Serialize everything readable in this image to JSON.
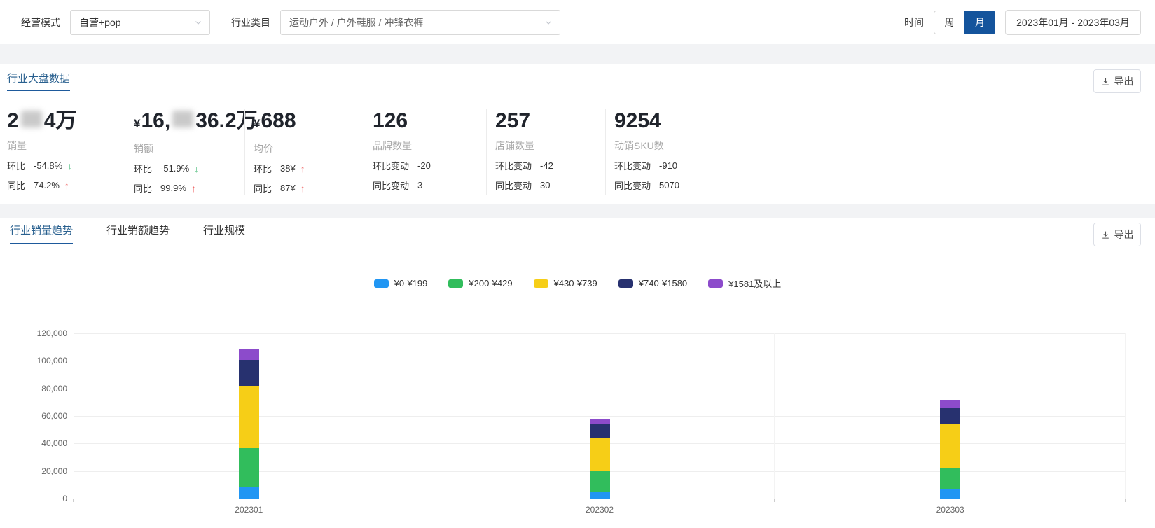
{
  "filters": {
    "mode_label": "经营模式",
    "mode_value": "自营+pop",
    "category_label": "行业类目",
    "category_value": "运动户外 / 户外鞋服 / 冲锋衣裤",
    "time_label": "时间",
    "time_week": "周",
    "time_month": "月",
    "time_selected": "月",
    "date_range": "2023年01月 - 2023年03月"
  },
  "overview": {
    "title": "行业大盘数据",
    "export_label": "导出",
    "kpis": [
      {
        "prefix": "",
        "segments": [
          {
            "text": "2"
          },
          {
            "blur": true
          },
          {
            "text": "4万"
          }
        ],
        "label": "销量",
        "rows": [
          {
            "label": "环比",
            "value": "-54.8%",
            "arrow": "↓",
            "trend": "down"
          },
          {
            "label": "同比",
            "value": "74.2%",
            "arrow": "↑",
            "trend": "up"
          }
        ]
      },
      {
        "prefix": "¥",
        "segments": [
          {
            "text": "16,"
          },
          {
            "blur": true
          },
          {
            "text": "36.2万"
          }
        ],
        "label": "销额",
        "rows": [
          {
            "label": "环比",
            "value": "-51.9%",
            "arrow": "↓",
            "trend": "down"
          },
          {
            "label": "同比",
            "value": "99.9%",
            "arrow": "↑",
            "trend": "up"
          }
        ]
      },
      {
        "prefix": "¥",
        "segments": [
          {
            "text": "688"
          }
        ],
        "label": "均价",
        "rows": [
          {
            "label": "环比",
            "value": "38¥",
            "arrow": "↑",
            "trend": "up"
          },
          {
            "label": "同比",
            "value": "87¥",
            "arrow": "↑",
            "trend": "up"
          }
        ]
      },
      {
        "prefix": "",
        "segments": [
          {
            "text": "126"
          }
        ],
        "label": "品牌数量",
        "rows": [
          {
            "label": "环比变动",
            "value": "-20",
            "arrow": "",
            "trend": ""
          },
          {
            "label": "同比变动",
            "value": "3",
            "arrow": "",
            "trend": ""
          }
        ]
      },
      {
        "prefix": "",
        "segments": [
          {
            "text": "257"
          }
        ],
        "label": "店铺数量",
        "rows": [
          {
            "label": "环比变动",
            "value": "-42",
            "arrow": "",
            "trend": ""
          },
          {
            "label": "同比变动",
            "value": "30",
            "arrow": "",
            "trend": ""
          }
        ]
      },
      {
        "prefix": "",
        "segments": [
          {
            "text": "9254"
          }
        ],
        "label": "动销SKU数",
        "rows": [
          {
            "label": "环比变动",
            "value": "-910",
            "arrow": "",
            "trend": ""
          },
          {
            "label": "同比变动",
            "value": "5070",
            "arrow": "",
            "trend": ""
          }
        ]
      }
    ]
  },
  "trends": {
    "tabs": [
      "行业销量趋势",
      "行业销额趋势",
      "行业规模"
    ],
    "active_tab": "行业销量趋势",
    "export_label": "导出"
  },
  "chart_data": {
    "type": "bar",
    "stacked": true,
    "title": "",
    "xlabel": "",
    "ylabel": "",
    "grid": true,
    "legend_position": "top",
    "categories": [
      "202301",
      "202302",
      "202303"
    ],
    "series": [
      {
        "name": "¥0-¥199",
        "color": "#2196F3",
        "values": [
          8800,
          4700,
          6600
        ]
      },
      {
        "name": "¥200-¥429",
        "color": "#31BD5C",
        "values": [
          28000,
          15500,
          15300
        ]
      },
      {
        "name": "¥430-¥739",
        "color": "#F6CE17",
        "values": [
          45000,
          24100,
          32200
        ]
      },
      {
        "name": "¥740-¥1580",
        "color": "#27316F",
        "values": [
          19000,
          9800,
          11900
        ]
      },
      {
        "name": "¥1581及以上",
        "color": "#8C4BCB",
        "values": [
          8000,
          4100,
          5900
        ]
      }
    ],
    "ylim": [
      0,
      120000
    ],
    "ytick_step": 20000
  },
  "colors": {
    "accent_blue": "#14549C",
    "title_blue": "#29608F",
    "up_red": "#EE6666",
    "down_green": "#43B974"
  }
}
